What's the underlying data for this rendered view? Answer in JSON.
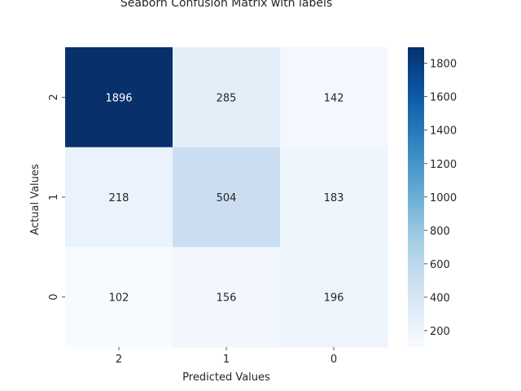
{
  "chart_data": {
    "type": "heatmap",
    "title": "Seaborn Confusion Matrix with labels",
    "xlabel": "Predicted Values",
    "ylabel": "Actual Values",
    "x_tick_labels": [
      "2",
      "1",
      "0"
    ],
    "y_tick_labels": [
      "2",
      "1",
      "0"
    ],
    "values": [
      [
        1896,
        285,
        142
      ],
      [
        218,
        504,
        183
      ],
      [
        102,
        156,
        196
      ]
    ],
    "colormap": "Blues",
    "colorbar": {
      "min": 102,
      "max": 1896,
      "ticks": [
        200,
        400,
        600,
        800,
        1000,
        1200,
        1400,
        1600,
        1800
      ]
    },
    "annotation_colors": {
      "light": "#262626",
      "dark": "#ffffff"
    }
  }
}
